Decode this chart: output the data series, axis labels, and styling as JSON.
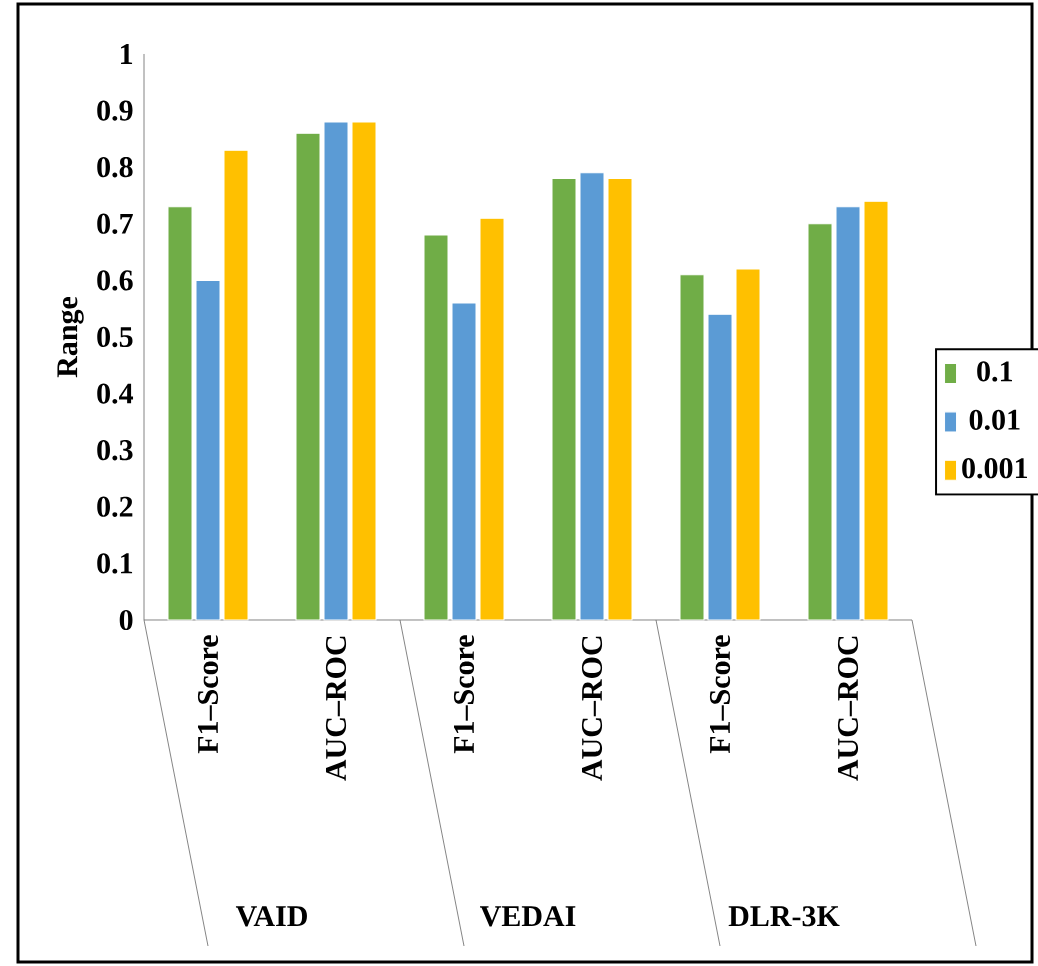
{
  "chart_data": {
    "type": "bar",
    "ylabel": "Range",
    "categories": [
      "F1–Score",
      "AUC–ROC",
      "F1–Score",
      "AUC–ROC",
      "F1–Score",
      "AUC–ROC"
    ],
    "annotations": [
      "VAID",
      "VEDAI",
      "DLR-3K"
    ],
    "series": [
      {
        "name": "0.1",
        "color": "#70ad47",
        "values": [
          0.73,
          0.86,
          0.68,
          0.78,
          0.61,
          0.7
        ]
      },
      {
        "name": "0.01",
        "color": "#5b9bd5",
        "values": [
          0.6,
          0.88,
          0.56,
          0.79,
          0.54,
          0.73
        ]
      },
      {
        "name": "0.001",
        "color": "#ffc000",
        "values": [
          0.83,
          0.88,
          0.71,
          0.78,
          0.62,
          0.74
        ]
      }
    ],
    "ylim": [
      0,
      1
    ],
    "yticks": [
      0,
      0.1,
      0.2,
      0.3,
      0.4,
      0.5,
      0.6,
      0.7,
      0.8,
      0.9,
      1
    ],
    "grid": false,
    "legend": "right"
  }
}
